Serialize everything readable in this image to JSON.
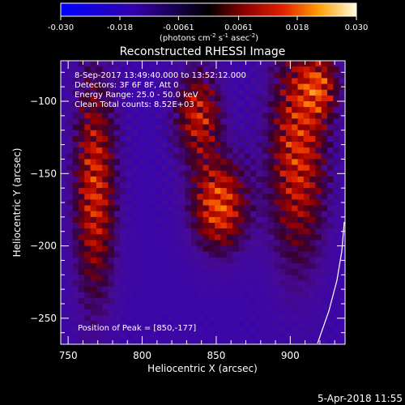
{
  "colorbar": {
    "ticks": [
      "-0.030",
      "-0.018",
      "-0.0061",
      "0.0061",
      "0.018",
      "0.030"
    ],
    "tick_values": [
      -0.03,
      -0.018,
      -0.0061,
      0.0061,
      0.018,
      0.03
    ],
    "range": [
      -0.03,
      0.03
    ],
    "units_prefix": "(photons cm",
    "units_exp1": "-2",
    "units_mid": " s",
    "units_exp2": "-1",
    "units_mid2": " asec",
    "units_exp3": "-2",
    "units_suffix": ")"
  },
  "chart_data": {
    "type": "heatmap",
    "title": "Reconstructed RHESSI Image",
    "xlabel": "Heliocentric X (arcsec)",
    "ylabel": "Heliocentric Y (arcsec)",
    "xlim": [
      745,
      937
    ],
    "ylim": [
      -268,
      -72
    ],
    "xticks": [
      750,
      800,
      850,
      900
    ],
    "yticks": [
      -100,
      -150,
      -200,
      -250
    ],
    "xtick_labels": [
      "750",
      "800",
      "850",
      "900"
    ],
    "ytick_labels": [
      "-100",
      "-150",
      "-200",
      "-250"
    ],
    "peak": [
      850,
      -177
    ],
    "sources": [
      {
        "x": 768,
        "y": -160,
        "sx": 10,
        "sy": 55,
        "amp": 0.026
      },
      {
        "x": 838,
        "y": -110,
        "sx": 11,
        "sy": 22,
        "amp": 0.024
      },
      {
        "x": 852,
        "y": -172,
        "sx": 13,
        "sy": 22,
        "amp": 0.03
      },
      {
        "x": 905,
        "y": -135,
        "sx": 14,
        "sy": 55,
        "amp": 0.026
      },
      {
        "x": 920,
        "y": -90,
        "sx": 9,
        "sy": 15,
        "amp": 0.02
      }
    ]
  },
  "annotations": {
    "time": "8-Sep-2017 13:49:40.000 to 13:52:12.000",
    "detectors": "Detectors: 3F 6F 8F, Att 0",
    "energy": "Energy Range: 25.0 - 50.0 keV",
    "clean": "Clean    Total counts: 8.52E+03",
    "peak": "Position of Peak = [850,-177]"
  },
  "footer": {
    "date": "5-Apr-2018 11:55"
  }
}
